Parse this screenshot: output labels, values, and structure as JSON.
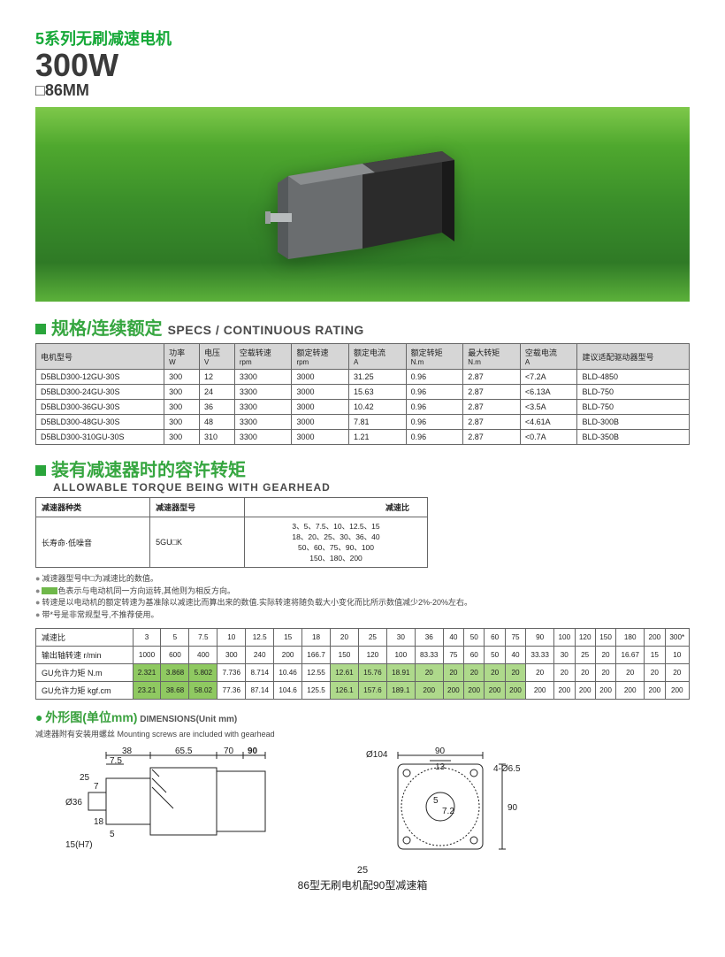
{
  "header": {
    "series": "5系列无刷减速电机",
    "power": "300W",
    "frame": "□86MM"
  },
  "sec1": {
    "cn": "规格/连续额定",
    "en": "SPECS / CONTINUOUS RATING",
    "cols": [
      {
        "cn": "电机型号",
        "en": ""
      },
      {
        "cn": "功率",
        "en": "W"
      },
      {
        "cn": "电压",
        "en": "V"
      },
      {
        "cn": "空载转速",
        "en": "rpm"
      },
      {
        "cn": "额定转速",
        "en": "rpm"
      },
      {
        "cn": "额定电流",
        "en": "A"
      },
      {
        "cn": "额定转矩",
        "en": "N.m"
      },
      {
        "cn": "最大转矩",
        "en": "N.m"
      },
      {
        "cn": "空载电流",
        "en": "A"
      },
      {
        "cn": "建议适配驱动器型号",
        "en": ""
      }
    ],
    "rows": [
      [
        "D5BLD300-12GU-30S",
        "300",
        "12",
        "3300",
        "3000",
        "31.25",
        "0.96",
        "2.87",
        "<7.2A",
        "BLD-4850"
      ],
      [
        "D5BLD300-24GU-30S",
        "300",
        "24",
        "3300",
        "3000",
        "15.63",
        "0.96",
        "2.87",
        "<6.13A",
        "BLD-750"
      ],
      [
        "D5BLD300-36GU-30S",
        "300",
        "36",
        "3300",
        "3000",
        "10.42",
        "0.96",
        "2.87",
        "<3.5A",
        "BLD-750"
      ],
      [
        "D5BLD300-48GU-30S",
        "300",
        "48",
        "3300",
        "3000",
        "7.81",
        "0.96",
        "2.87",
        "<4.61A",
        "BLD-300B"
      ],
      [
        "D5BLD300-310GU-30S",
        "300",
        "310",
        "3300",
        "3000",
        "1.21",
        "0.96",
        "2.87",
        "<0.7A",
        "BLD-350B"
      ]
    ]
  },
  "sec2": {
    "cn": "装有减速器时的容许转矩",
    "en": "ALLOWABLE TORQUE BEING WITH GEARHEAD",
    "ghCols": [
      "减速器种类",
      "减速器型号",
      "减速比"
    ],
    "ghRow": [
      "长寿命·低噪音",
      "5GU□K",
      "3、5、7.5、10、12.5、15\n18、20、25、30、36、40\n50、60、75、90、100\n150、180、200"
    ]
  },
  "notes": [
    "减速器型号中□为减速比的数值。",
    "色表示与电动机同一方向运转,其他则为相反方向。",
    "转速是以电动机的额定转速为基准除以减速比而算出来的数值.实际转速将随负载大小变化而比所示数值减少2%-20%左右。",
    "带*号是非常规型号,不推荐使用。"
  ],
  "torque": {
    "head": [
      "减速比",
      "3",
      "5",
      "7.5",
      "10",
      "12.5",
      "15",
      "18",
      "20",
      "25",
      "30",
      "36",
      "40",
      "50",
      "60",
      "75",
      "90",
      "100",
      "120",
      "150",
      "180",
      "200",
      "300*"
    ],
    "speedLabel": "输出轴转速 r/min",
    "speed": [
      "1000",
      "600",
      "400",
      "300",
      "240",
      "200",
      "166.7",
      "150",
      "120",
      "100",
      "83.33",
      "75",
      "60",
      "50",
      "40",
      "33.33",
      "30",
      "25",
      "20",
      "16.67",
      "15",
      "10"
    ],
    "nmLabel": "GU允许力矩 N.m",
    "nm": [
      "2.321",
      "3.868",
      "5.802",
      "7.736",
      "8.714",
      "10.46",
      "12.55",
      "12.61",
      "15.76",
      "18.91",
      "20",
      "20",
      "20",
      "20",
      "20",
      "20",
      "20",
      "20",
      "20",
      "20",
      "20",
      "20"
    ],
    "nmHi": [
      1,
      1,
      1,
      0,
      0,
      0,
      0,
      2,
      2,
      2,
      2,
      2,
      2,
      2,
      2,
      0,
      0,
      0,
      0,
      0,
      0,
      0
    ],
    "kgfLabel": "GU允许力矩 kgf.cm",
    "kgf": [
      "23.21",
      "38.68",
      "58.02",
      "77.36",
      "87.14",
      "104.6",
      "125.5",
      "126.1",
      "157.6",
      "189.1",
      "200",
      "200",
      "200",
      "200",
      "200",
      "200",
      "200",
      "200",
      "200",
      "200",
      "200",
      "200"
    ],
    "kgfHi": [
      1,
      1,
      1,
      0,
      0,
      0,
      0,
      2,
      2,
      2,
      2,
      2,
      2,
      2,
      2,
      0,
      0,
      0,
      0,
      0,
      0,
      0
    ]
  },
  "dim": {
    "cn": "外形图(单位mm)",
    "en": "DIMENSIONS(Unit mm)",
    "note": "减速器附有安装用螺丝 Mounting screws are included with gearhead",
    "left": {
      "a": "38",
      "b": "65.5",
      "c": "70",
      "d": "90",
      "e": "7.5",
      "f": "25",
      "g": "7",
      "h": "Ø36",
      "i": "18",
      "j": "5",
      "k": "15(H7)"
    },
    "right": {
      "a": "Ø104",
      "b": "13",
      "c": "90",
      "d": "4-Ø6.5",
      "e": "5",
      "f": "7.2",
      "g": "90"
    }
  },
  "page": "25",
  "caption": "86型无刷电机配90型减速箱",
  "colors": {
    "green": "#2aa53b",
    "hl1": "#8fc961",
    "hl2": "#aed98b",
    "headerBg": "#d6d6d6"
  }
}
